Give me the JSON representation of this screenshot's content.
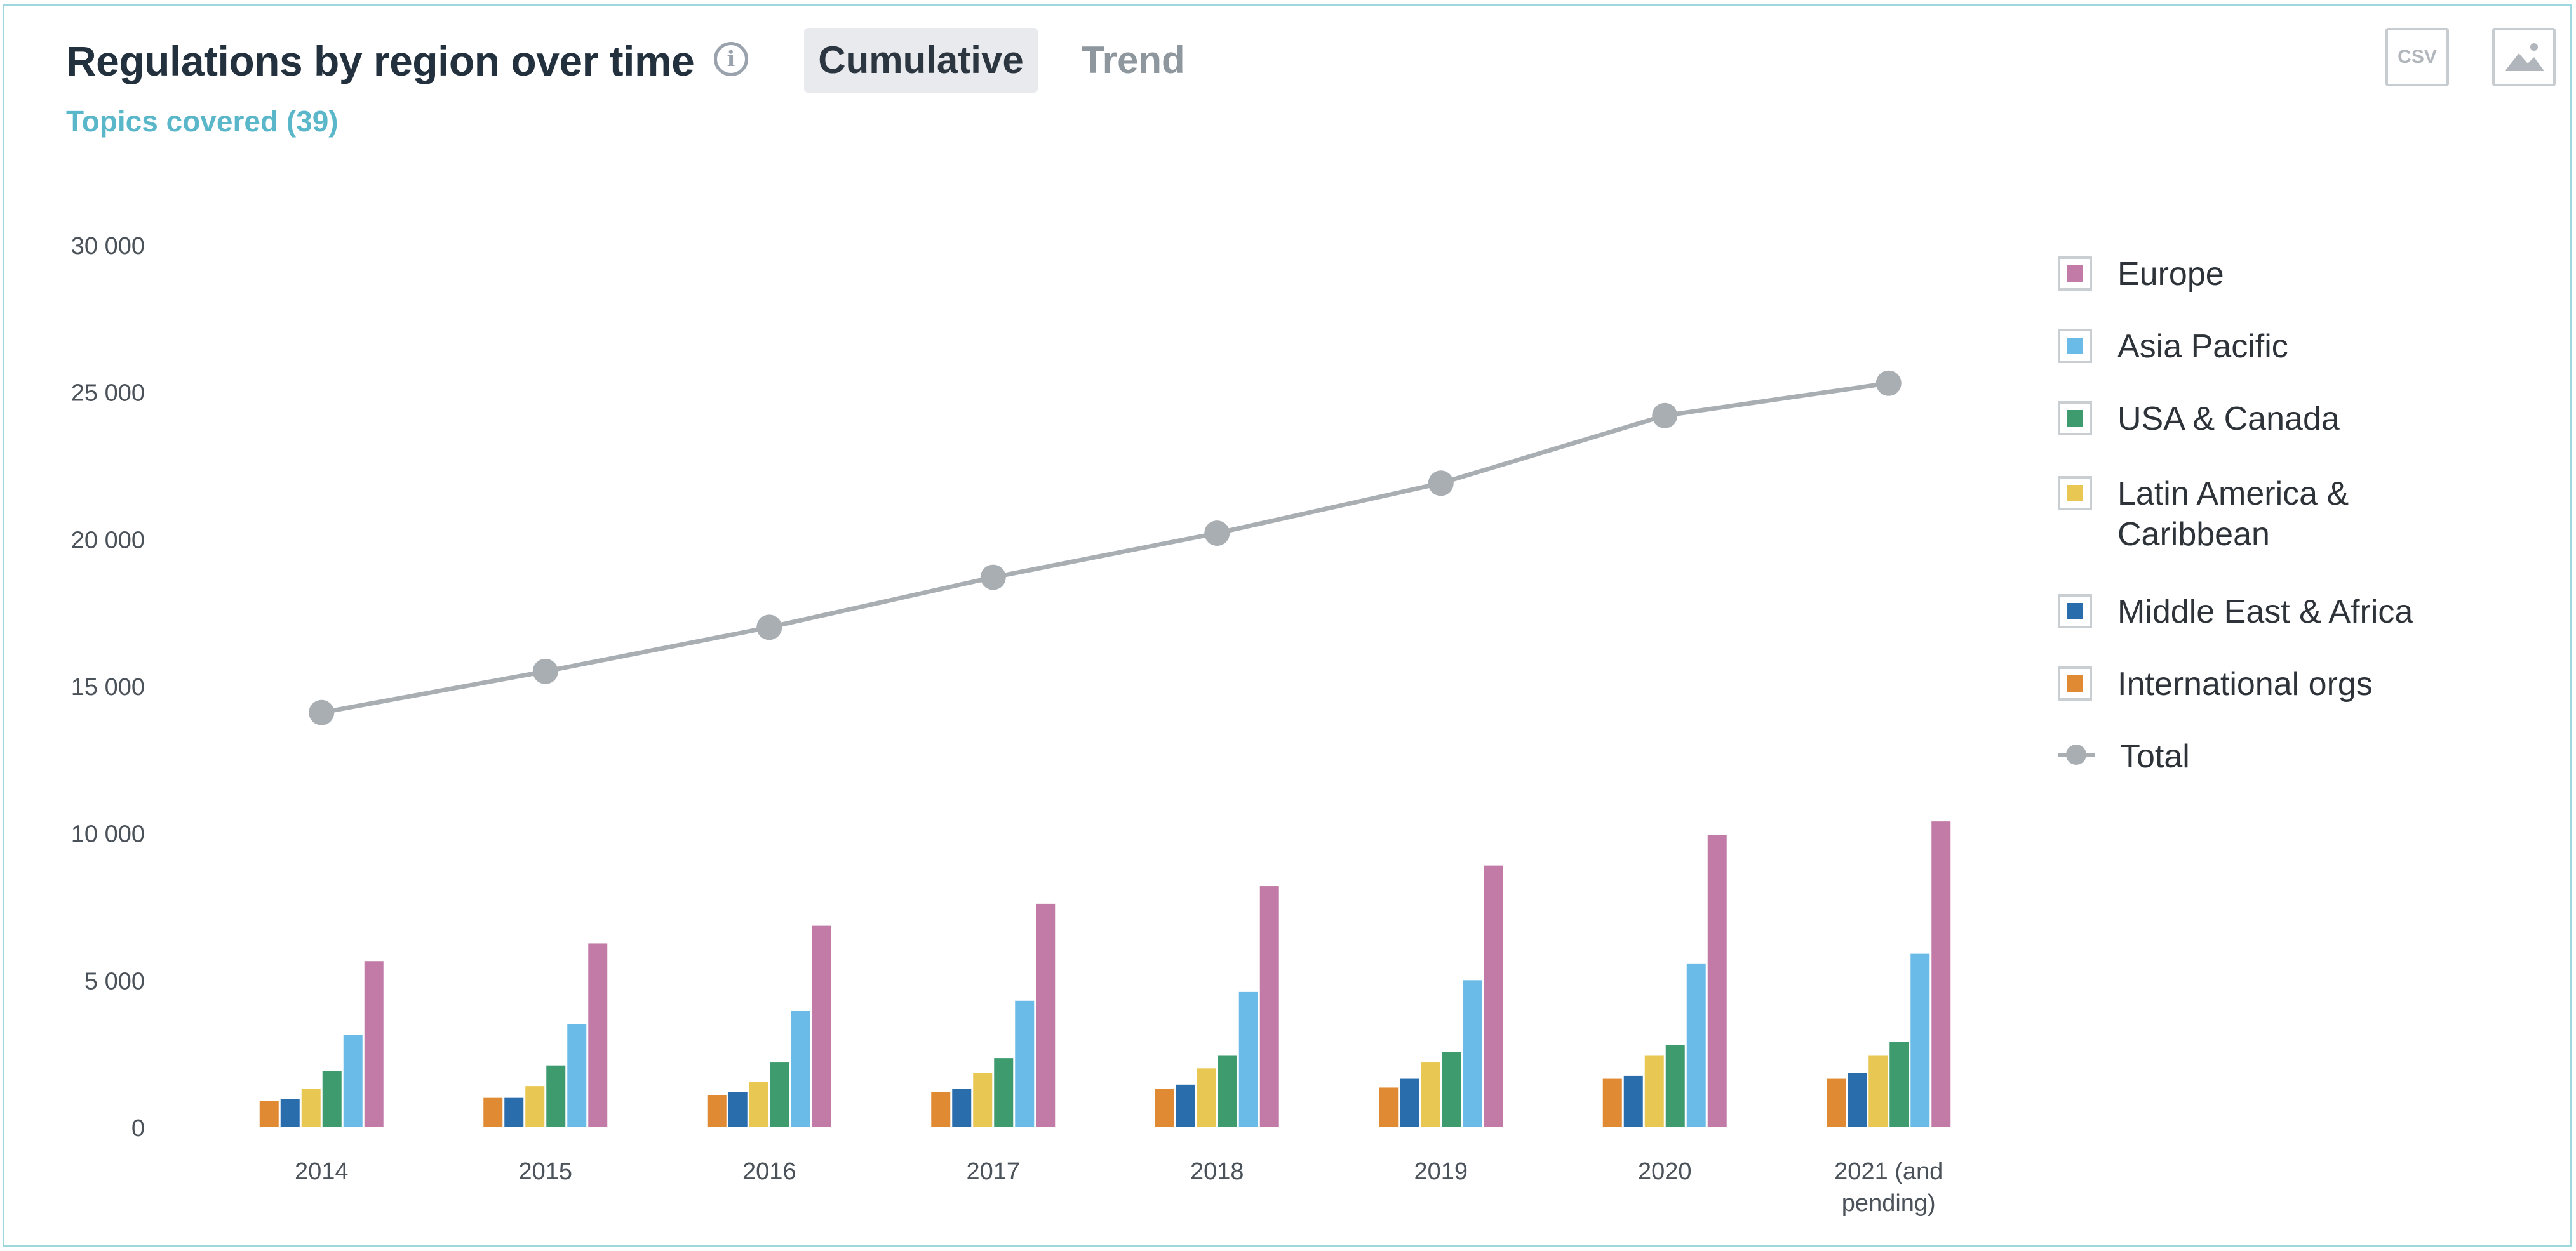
{
  "header": {
    "title": "Regulations by region over time",
    "tabs": [
      {
        "label": "Cumulative",
        "active": true
      },
      {
        "label": "Trend",
        "active": false
      }
    ],
    "subtitle": "Topics covered (39)",
    "csv_label": "CSV",
    "icons": {
      "info": "info-icon",
      "image": "image-download-icon"
    }
  },
  "colors": {
    "Europe": "#c27ba7",
    "Asia Pacific": "#6bbbe9",
    "USA & Canada": "#3e9b6e",
    "Latin America & Caribbean": "#e8c752",
    "Middle East & Africa": "#2a6dad",
    "International orgs": "#e08a33",
    "Total": "#a9aeb3"
  },
  "chart_data": {
    "type": "bar",
    "categories": [
      "2014",
      "2015",
      "2016",
      "2017",
      "2018",
      "2019",
      "2020",
      "2021 (and pending)"
    ],
    "ylim": [
      0,
      30000
    ],
    "yticks": [
      "0",
      "5 000",
      "10 000",
      "15 000",
      "20 000",
      "25 000",
      "30 000"
    ],
    "series": [
      {
        "name": "International orgs",
        "values": [
          900,
          1000,
          1100,
          1200,
          1300,
          1350,
          1650,
          1650
        ]
      },
      {
        "name": "Middle East & Africa",
        "values": [
          950,
          1000,
          1200,
          1300,
          1450,
          1650,
          1750,
          1850
        ]
      },
      {
        "name": "Latin America & Caribbean",
        "values": [
          1300,
          1400,
          1550,
          1850,
          2000,
          2200,
          2450,
          2450
        ]
      },
      {
        "name": "USA & Canada",
        "values": [
          1900,
          2100,
          2200,
          2350,
          2450,
          2550,
          2800,
          2900
        ]
      },
      {
        "name": "Asia Pacific",
        "values": [
          3150,
          3500,
          3950,
          4300,
          4600,
          5000,
          5550,
          5900
        ]
      },
      {
        "name": "Europe",
        "values": [
          5650,
          6250,
          6850,
          7600,
          8200,
          8900,
          9950,
          10400
        ]
      }
    ],
    "line": {
      "name": "Total",
      "type": "line",
      "values": [
        14100,
        15500,
        17000,
        18700,
        20200,
        21900,
        24200,
        25300
      ]
    },
    "legend": [
      "Europe",
      "Asia Pacific",
      "USA & Canada",
      "Latin America & Caribbean",
      "Middle East & Africa",
      "International orgs",
      "Total"
    ],
    "legend_position": "right",
    "grid": false
  }
}
